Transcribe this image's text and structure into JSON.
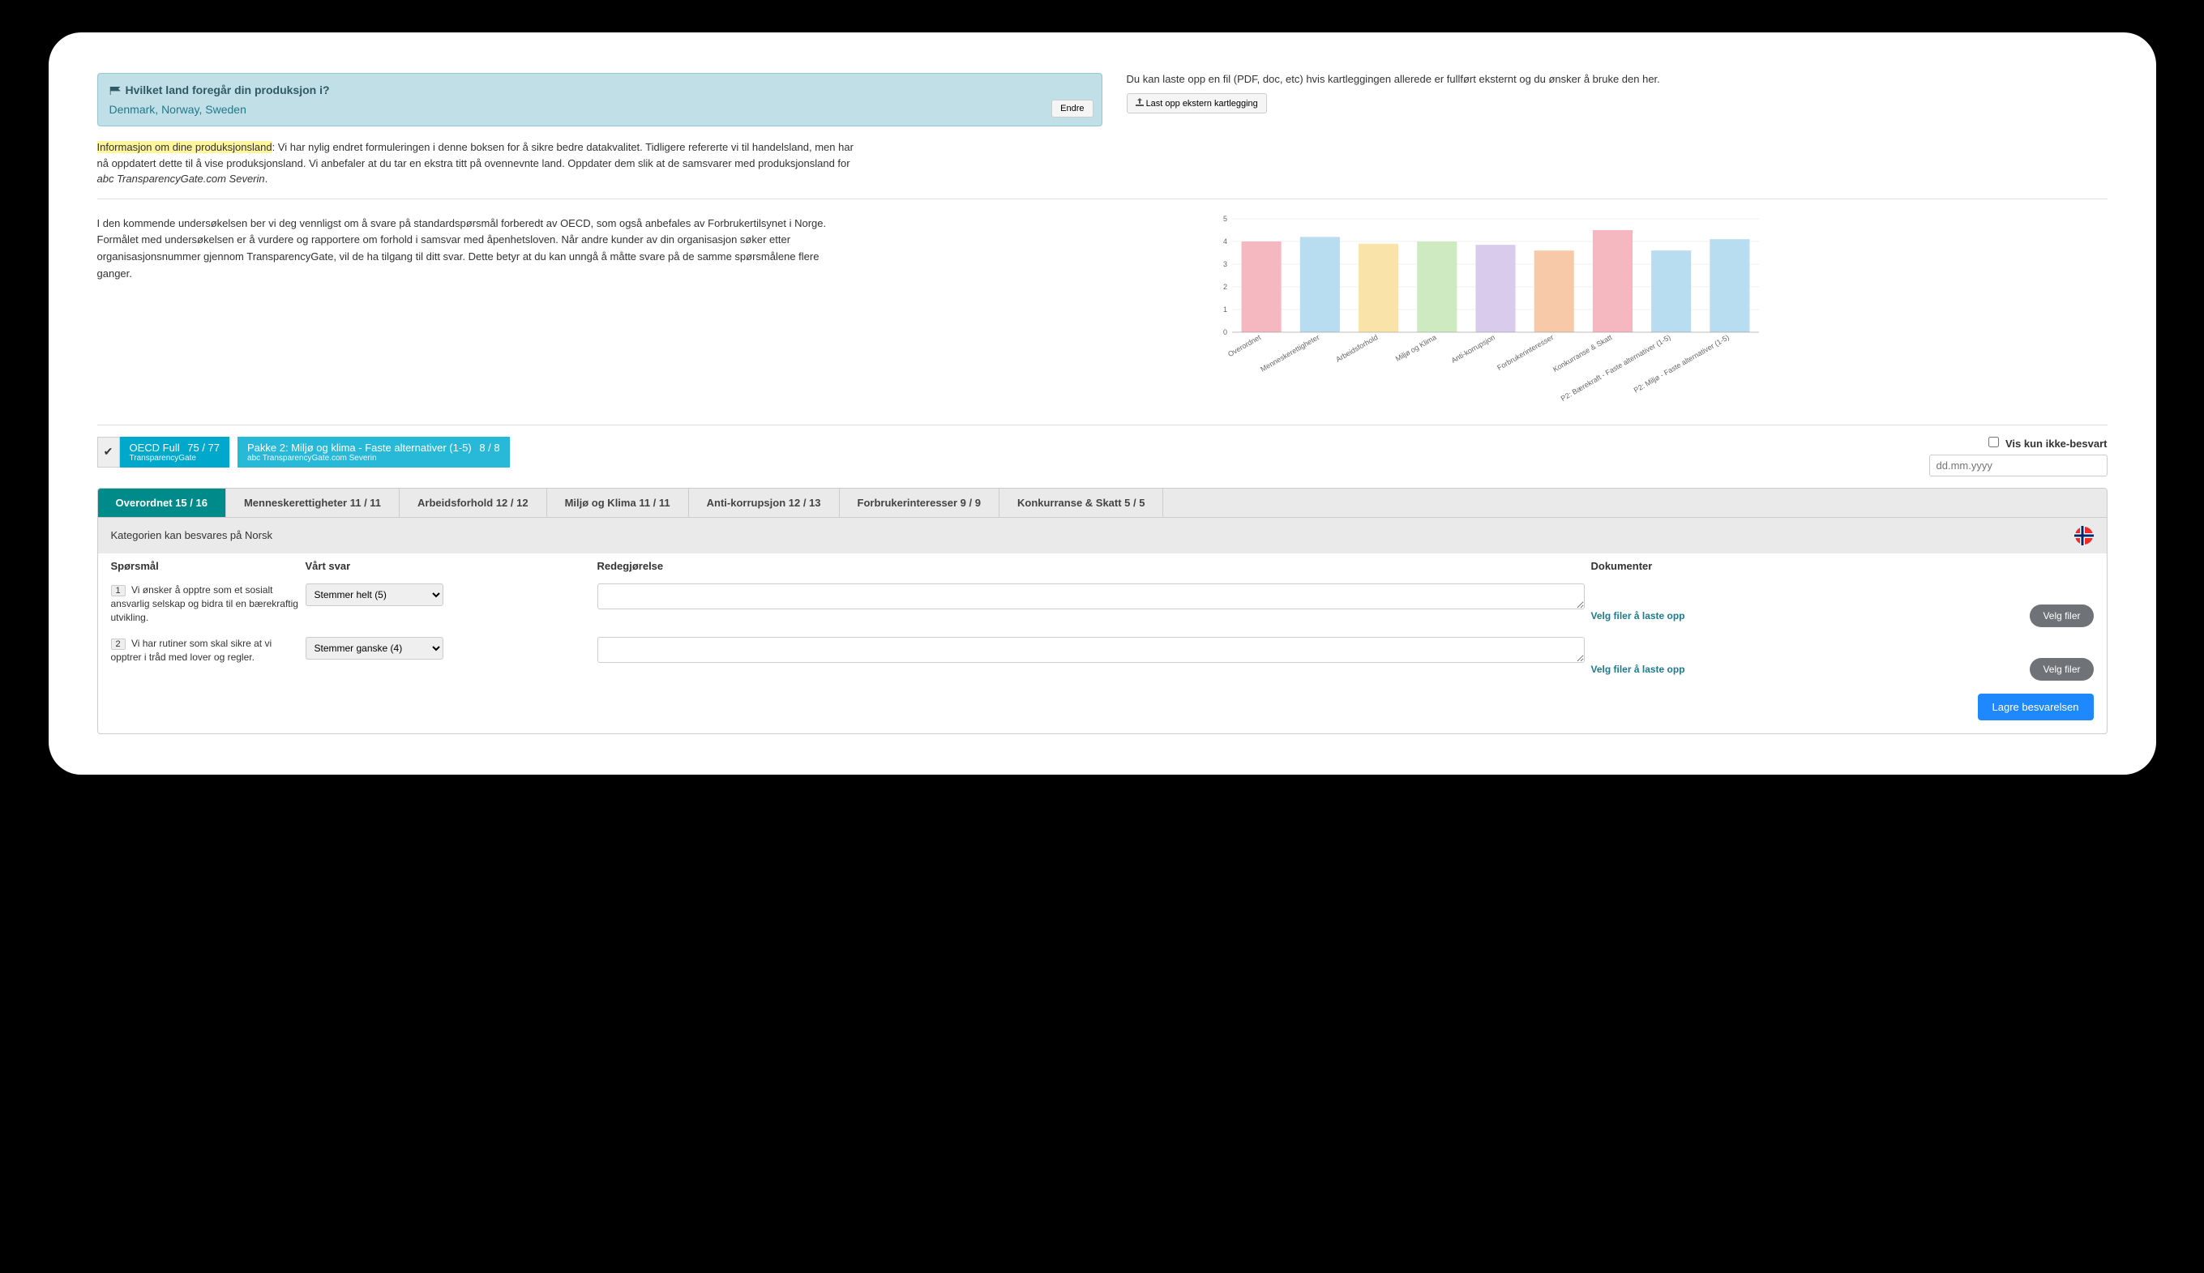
{
  "countryBox": {
    "title": "Hvilket land foregår din produksjon i?",
    "countries": "Denmark, Norway, Sweden",
    "changeBtn": "Endre"
  },
  "upload": {
    "text": "Du kan laste opp en fil (PDF, doc, etc) hvis kartleggingen allerede er fullført eksternt og du ønsker å bruke den her.",
    "btn": "Last opp ekstern kartlegging"
  },
  "infoPara": {
    "highlight": "Informasjon om dine produksjonsland",
    "rest": ": Vi har nylig endret formuleringen i denne boksen for å sikre bedre datakvalitet. Tidligere refererte vi til handelsland, men har nå oppdatert dette til å vise produksjonsland. Vi anbefaler at du tar en ekstra titt på ovennevnte land. Oppdater dem slik at de samsvarer med produksjonsland for ",
    "italic": "abc TransparencyGate.com Severin",
    "end": "."
  },
  "midText": "I den kommende undersøkelsen ber vi deg vennligst om å svare på standardspørsmål forberedt av OECD, som også anbefales av Forbrukertilsynet i Norge. Formålet med undersøkelsen er å vurdere og rapportere om forhold i samsvar med åpenhetsloven. Når andre kunder av din organisasjon søker etter organisasjonsnummer gjennom TransparencyGate, vil de ha tilgang til ditt svar. Dette betyr at du kan unngå å måtte svare på de samme spørsmålene flere ganger.",
  "chart": {
    "type": "bar",
    "ylim": [
      0,
      5
    ],
    "ytick_step": 1,
    "categories": [
      "Overordnet",
      "Menneskerettigheter",
      "Arbeidsforhold",
      "Miljø og Klima",
      "Anti-korrupsjon",
      "Forbrukerinteresser",
      "Konkurranse & Skatt",
      "P2: Bærekraft - Faste alternativer (1-5)",
      "P2: Miljø - Faste alternativer (1-5)"
    ],
    "values": [
      4.0,
      4.2,
      3.9,
      4.0,
      3.85,
      3.6,
      4.5,
      3.6,
      4.1
    ],
    "bar_colors": [
      "#f6b8c0",
      "#b8dcf0",
      "#fae3a8",
      "#cdeac0",
      "#d8cbec",
      "#f7c9a8",
      "#f6b8c0",
      "#b8dcf0",
      "#b8dcf0"
    ],
    "axis_color": "#888",
    "label_fontsize": 9,
    "label_color": "#666",
    "background_color": "#ffffff",
    "bar_width": 0.68
  },
  "pills": [
    {
      "title": "OECD Full",
      "count": "75 / 77",
      "sub": "TransparencyGate",
      "hasCheck": true
    },
    {
      "title": "Pakke 2: Miljø og klima - Faste alternativer (1-5)",
      "count": "8 / 8",
      "sub": "abc TransparencyGate.com Severin",
      "hasCheck": false
    }
  ],
  "rightControls": {
    "checkboxLabel": "Vis kun ikke-besvart",
    "datePlaceholder": "dd.mm.yyyy"
  },
  "tabs": [
    {
      "label": "Overordnet 15 / 16",
      "active": true
    },
    {
      "label": "Menneskerettigheter 11 / 11"
    },
    {
      "label": "Arbeidsforhold 12 / 12"
    },
    {
      "label": "Miljø og Klima 11 / 11"
    },
    {
      "label": "Anti-korrupsjon 12 / 13"
    },
    {
      "label": "Forbrukerinteresser 9 / 9"
    },
    {
      "label": "Konkurranse & Skatt 5 / 5"
    }
  ],
  "categoryLine": "Kategorien kan besvares på Norsk",
  "tableHead": {
    "q": "Spørsmål",
    "a": "Vårt svar",
    "r": "Redegjørelse",
    "d": "Dokumenter"
  },
  "questions": [
    {
      "num": "1",
      "text": "Vi ønsker å opptre som et sosialt ansvarlig selskap og bidra til en bærekraftig utvikling.",
      "answer": "Stemmer helt (5)"
    },
    {
      "num": "2",
      "text": "Vi har rutiner som skal sikre at vi opptrer i tråd med lover og regler.",
      "answer": "Stemmer ganske (4)"
    }
  ],
  "docLink": "Velg filer å laste opp",
  "velgBtn": "Velg filer",
  "saveBtn": "Lagre besvarelsen"
}
